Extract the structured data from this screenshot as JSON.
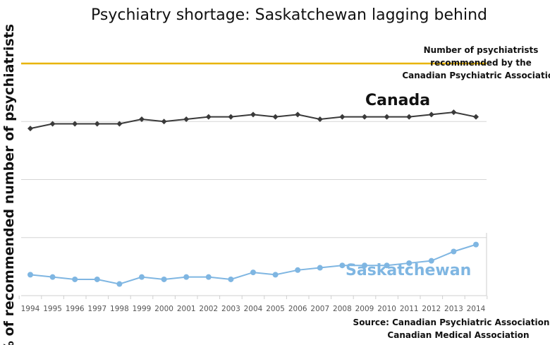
{
  "chart_data": {
    "type": "line",
    "title": "Psychiatry shortage: Saskatchewan lagging behind",
    "ylabel": "% of recommended number of psychiatrists",
    "xlabel": "",
    "x": [
      "1994",
      "1995",
      "1996",
      "1997",
      "1998",
      "1999",
      "2000",
      "2001",
      "2002",
      "2003",
      "2004",
      "2005",
      "2006",
      "2007",
      "2008",
      "2009",
      "2010",
      "2011",
      "2012",
      "2013",
      "2014"
    ],
    "ylim": [
      0,
      100
    ],
    "grid": true,
    "reference_line": {
      "value": 100,
      "color": "#e8b400",
      "label_lines": [
        "Number of psychiatrists",
        "recommended by the",
        "Canadian Psychiatric Association"
      ]
    },
    "series": [
      {
        "name": "Canada",
        "color": "#3a3a3a",
        "marker": "diamond",
        "values": [
          72,
          74,
          74,
          74,
          74,
          76,
          75,
          76,
          77,
          77,
          78,
          77,
          78,
          76,
          77,
          77,
          77,
          77,
          78,
          79,
          77
        ]
      },
      {
        "name": "Saskatchewan",
        "color": "#7fb6e2",
        "marker": "circle",
        "values": [
          9,
          8,
          7,
          7,
          5,
          8,
          7,
          8,
          8,
          7,
          10,
          9,
          11,
          12,
          13,
          13,
          13,
          14,
          15,
          19,
          22
        ]
      }
    ],
    "source_lines": [
      "Source: Canadian Psychiatric Association",
      "Canadian Medical Association"
    ]
  }
}
